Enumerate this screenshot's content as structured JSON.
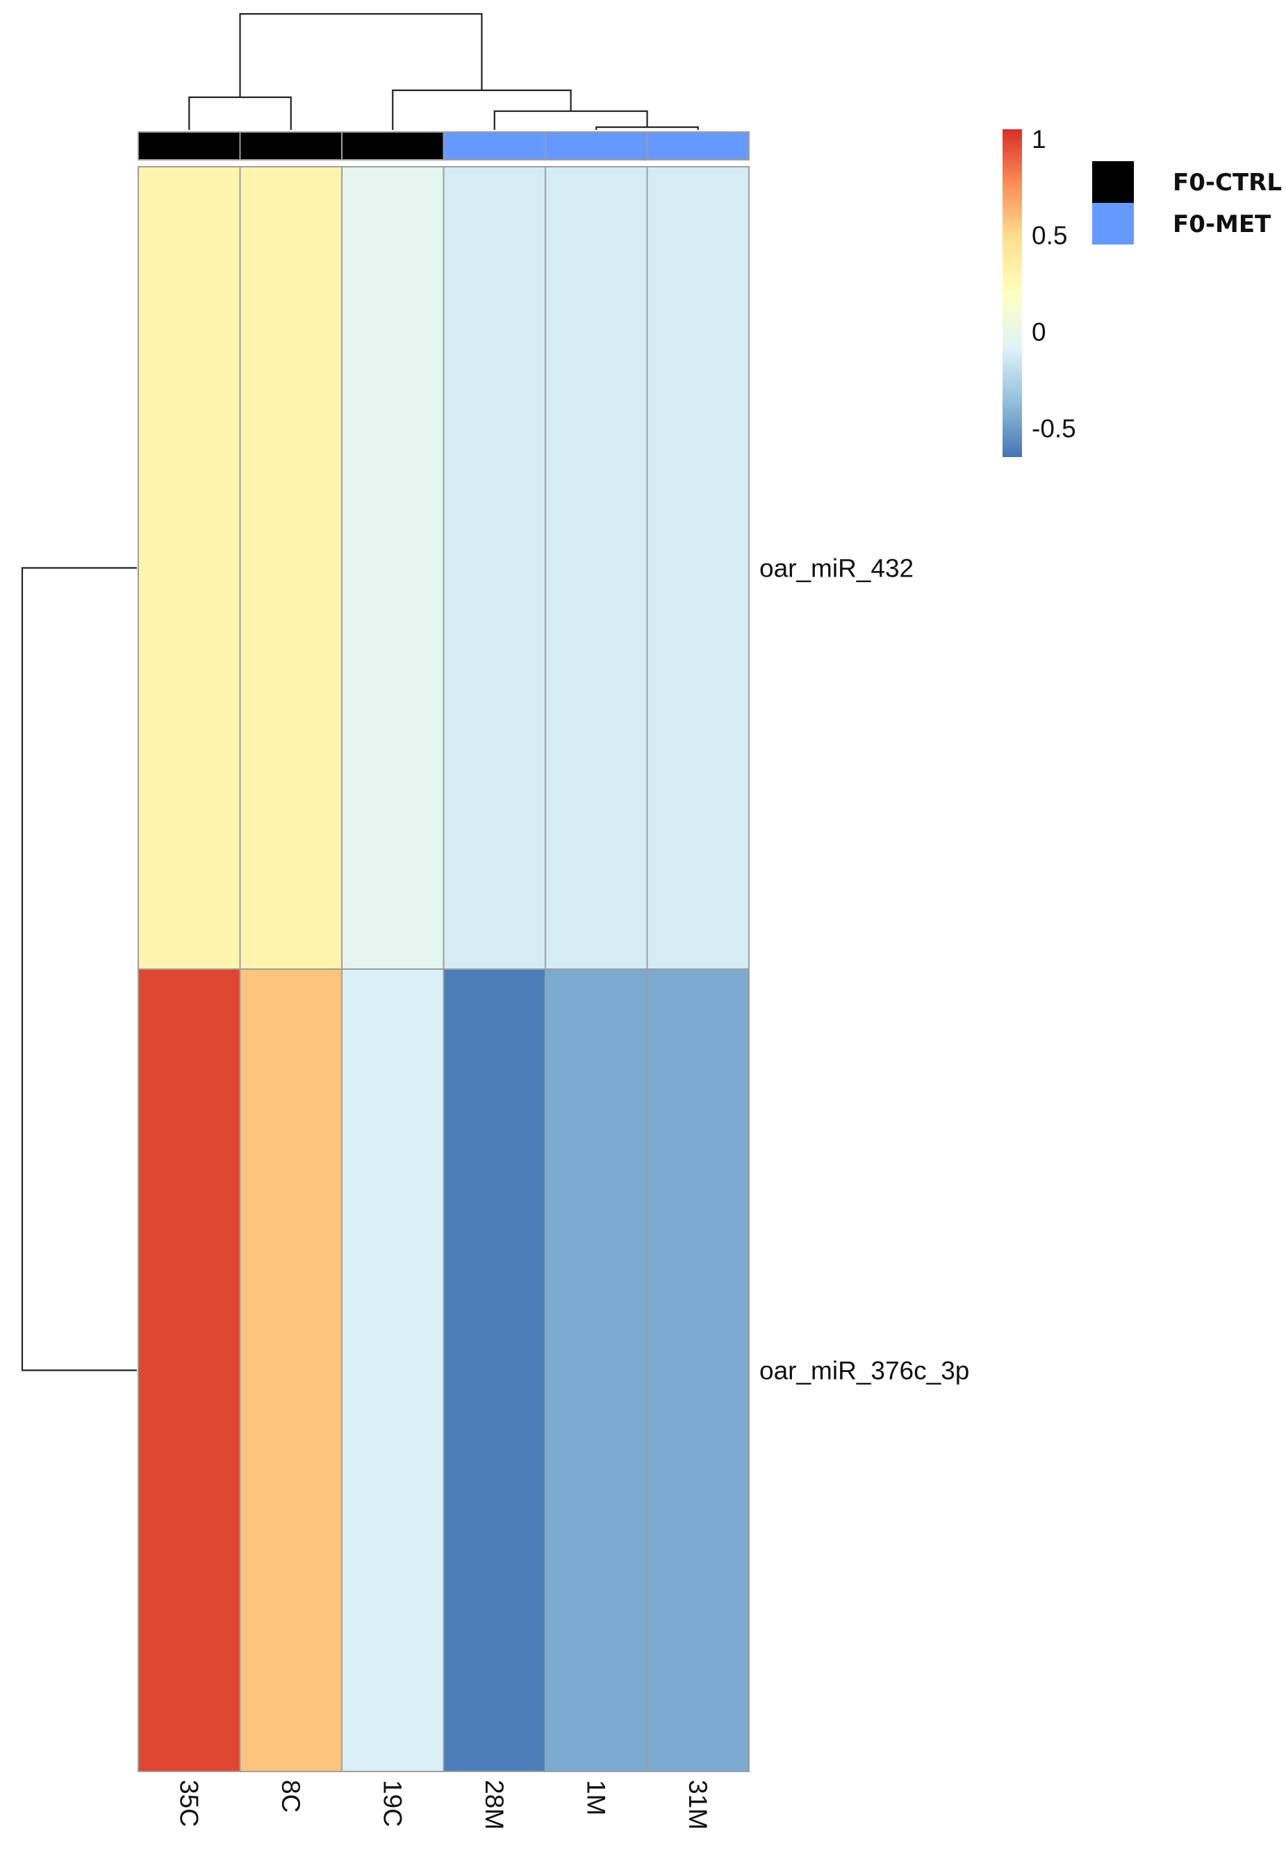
{
  "chart_data": {
    "type": "heatmap",
    "rows": [
      "oar_miR_432",
      "oar_miR_376c_3p"
    ],
    "columns": [
      "35C",
      "8C",
      "19C",
      "28M",
      "1M",
      "31M"
    ],
    "values": [
      [
        0.3,
        0.3,
        -0.04,
        -0.12,
        -0.12,
        -0.12
      ],
      [
        0.98,
        0.58,
        -0.1,
        -0.62,
        -0.45,
        -0.45
      ]
    ],
    "column_groups": [
      "F0-CTRL",
      "F0-CTRL",
      "F0-CTRL",
      "F0-MET",
      "F0-MET",
      "F0-MET"
    ],
    "group_legend": [
      {
        "name": "F0-CTRL",
        "color": "#000000"
      },
      {
        "name": "F0-MET",
        "color": "#6699FF"
      }
    ],
    "color_scale": {
      "ticks": [
        1,
        0.5,
        0,
        -0.5
      ],
      "tick_labels": [
        "1",
        "0.5",
        "0",
        "-0.5"
      ],
      "range": [
        -0.65,
        1.05
      ],
      "colors": [
        "#4575B4",
        "#91BFDB",
        "#E0F3F8",
        "#FFFFBF",
        "#FEE090",
        "#FC8D59",
        "#D73027"
      ]
    },
    "row_dendrogram": true,
    "column_dendrogram": true,
    "legend_position": "top-right",
    "grid": true
  }
}
